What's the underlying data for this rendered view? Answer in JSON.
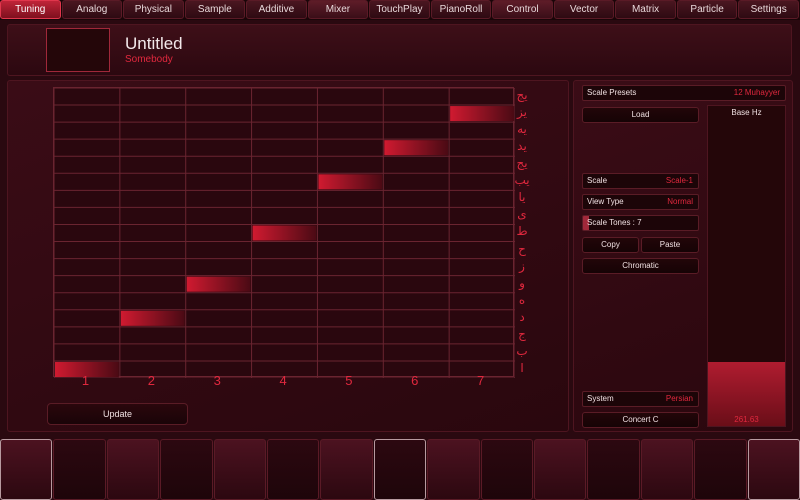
{
  "tabs": [
    {
      "label": "Tuning",
      "active": true
    },
    {
      "label": "Analog"
    },
    {
      "label": "Physical"
    },
    {
      "label": "Sample"
    },
    {
      "label": "Additive"
    },
    {
      "label": "Mixer"
    },
    {
      "label": "TouchPlay"
    },
    {
      "label": "PianoRoll"
    },
    {
      "label": "Control"
    },
    {
      "label": "Vector"
    },
    {
      "label": "Matrix"
    },
    {
      "label": "Particle"
    },
    {
      "label": "Settings"
    }
  ],
  "header": {
    "title": "Untitled",
    "author": "Somebody"
  },
  "grid": {
    "columns": [
      "1",
      "2",
      "3",
      "4",
      "5",
      "6",
      "7"
    ],
    "row_labels": [
      "یج",
      "یز",
      "یه",
      "ید",
      "یج",
      "یب",
      "یا",
      "ی",
      "ط",
      "ح",
      "ز",
      "و",
      "ه",
      "د",
      "ج",
      "ب",
      "ا"
    ],
    "rows": 17,
    "active_cells": [
      {
        "col": 1,
        "row": 17
      },
      {
        "col": 2,
        "row": 14
      },
      {
        "col": 3,
        "row": 12
      },
      {
        "col": 4,
        "row": 9
      },
      {
        "col": 5,
        "row": 6
      },
      {
        "col": 6,
        "row": 4
      },
      {
        "col": 7,
        "row": 2
      }
    ],
    "accent": "#d01a30",
    "line_color": "#6a2430"
  },
  "update_label": "Update",
  "right": {
    "scale_presets_label": "Scale Presets",
    "scale_presets_value": "12 Muhayyer",
    "load_label": "Load",
    "scale_label": "Scale",
    "scale_value": "Scale-1",
    "view_type_label": "View Type",
    "view_type_value": "Normal",
    "scale_tones_label": "Scale Tones : 7",
    "copy_label": "Copy",
    "paste_label": "Paste",
    "chromatic_label": "Chromatic",
    "system_label": "System",
    "system_value": "Persian",
    "concert_label": "Concert C",
    "base_hz_label": "Base Hz",
    "base_hz_value": "261.63",
    "base_hz_level": 0.2
  },
  "pads": [
    {
      "style": "lit"
    },
    {
      "style": "dark"
    },
    {
      "style": "normal"
    },
    {
      "style": "dark"
    },
    {
      "style": "normal"
    },
    {
      "style": "dark"
    },
    {
      "style": "normal"
    },
    {
      "style": "lit-dark"
    },
    {
      "style": "normal"
    },
    {
      "style": "dark"
    },
    {
      "style": "normal"
    },
    {
      "style": "dark"
    },
    {
      "style": "normal"
    },
    {
      "style": "dark"
    },
    {
      "style": "lit"
    }
  ]
}
